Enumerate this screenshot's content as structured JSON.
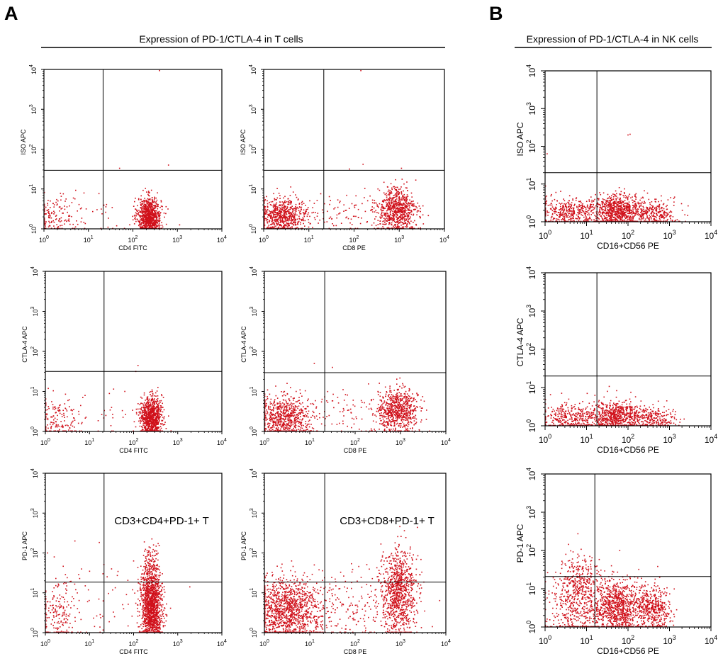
{
  "panels": {
    "A": {
      "letter": "A",
      "title": "Expression of PD-1/CTLA-4 in T cells"
    },
    "B": {
      "letter": "B",
      "title": "Expression of PD-1/CTLA-4 in NK cells"
    }
  },
  "chart_data": [
    {
      "type": "scatter",
      "panel": "A",
      "id": "t-cd4-iso",
      "xlabel": "CD4 FITC",
      "ylabel": "ISO APC",
      "xlim": [
        0,
        4
      ],
      "ylim": [
        0,
        4
      ],
      "xticks": [
        {
          "b": "10",
          "e": "0"
        },
        {
          "b": "10",
          "e": "1"
        },
        {
          "b": "10",
          "e": "2"
        },
        {
          "b": "10",
          "e": "3"
        },
        {
          "b": "10",
          "e": "4"
        }
      ],
      "yticks": [
        {
          "b": "10",
          "e": "0"
        },
        {
          "b": "10",
          "e": "1"
        },
        {
          "b": "10",
          "e": "2"
        },
        {
          "b": "10",
          "e": "3"
        },
        {
          "b": "10",
          "e": "4"
        }
      ],
      "gate": {
        "x": 1.33,
        "y": 1.47
      },
      "point_color": "#d0101a",
      "clusters": [
        {
          "x": 2.37,
          "y": 0.32,
          "sx": 0.13,
          "sy": 0.23,
          "n": 900
        },
        {
          "x": 0.2,
          "y": 0.3,
          "sx": 0.25,
          "sy": 0.25,
          "n": 140
        },
        {
          "x": 1.2,
          "y": 0.3,
          "sx": 0.6,
          "sy": 0.3,
          "n": 40
        }
      ],
      "outliers": [
        [
          2.6,
          3.97
        ],
        [
          2.8,
          1.6
        ],
        [
          1.7,
          1.52
        ],
        [
          0.95,
          0.5
        ],
        [
          0.9,
          0.9
        ],
        [
          3.05,
          0.1
        ]
      ]
    },
    {
      "type": "scatter",
      "panel": "A",
      "id": "t-cd8-iso",
      "xlabel": "CD8 PE",
      "ylabel": "ISO APC",
      "xlim": [
        0,
        4
      ],
      "ylim": [
        0,
        4
      ],
      "xticks": [
        {
          "b": "10",
          "e": "0"
        },
        {
          "b": "10",
          "e": "1"
        },
        {
          "b": "10",
          "e": "2"
        },
        {
          "b": "10",
          "e": "3"
        },
        {
          "b": "10",
          "e": "4"
        }
      ],
      "yticks": [
        {
          "b": "10",
          "e": "0"
        },
        {
          "b": "10",
          "e": "1"
        },
        {
          "b": "10",
          "e": "2"
        },
        {
          "b": "10",
          "e": "3"
        },
        {
          "b": "10",
          "e": "4"
        }
      ],
      "gate": {
        "x": 1.33,
        "y": 1.47
      },
      "point_color": "#d0101a",
      "clusters": [
        {
          "x": 0.4,
          "y": 0.32,
          "sx": 0.3,
          "sy": 0.22,
          "n": 700
        },
        {
          "x": 2.95,
          "y": 0.45,
          "sx": 0.22,
          "sy": 0.28,
          "n": 750
        },
        {
          "x": 1.8,
          "y": 0.4,
          "sx": 0.5,
          "sy": 0.3,
          "n": 90
        }
      ],
      "outliers": [
        [
          2.15,
          3.97
        ],
        [
          2.2,
          1.62
        ],
        [
          3.05,
          1.52
        ],
        [
          1.9,
          1.5
        ]
      ]
    },
    {
      "type": "scatter",
      "panel": "A",
      "id": "t-cd4-ctla4",
      "xlabel": "CD4 FITC",
      "ylabel": "CTLA-4 APC",
      "xlim": [
        0,
        4
      ],
      "ylim": [
        0,
        4
      ],
      "xticks": [
        {
          "b": "10",
          "e": "0"
        },
        {
          "b": "10",
          "e": "1"
        },
        {
          "b": "10",
          "e": "2"
        },
        {
          "b": "10",
          "e": "3"
        },
        {
          "b": "10",
          "e": "4"
        }
      ],
      "yticks": [
        {
          "b": "10",
          "e": "0"
        },
        {
          "b": "10",
          "e": "1"
        },
        {
          "b": "10",
          "e": "2"
        },
        {
          "b": "10",
          "e": "3"
        },
        {
          "b": "10",
          "e": "4"
        }
      ],
      "gate": {
        "x": 1.33,
        "y": 1.5
      },
      "point_color": "#d0101a",
      "clusters": [
        {
          "x": 2.4,
          "y": 0.35,
          "sx": 0.12,
          "sy": 0.25,
          "n": 900
        },
        {
          "x": 0.25,
          "y": 0.3,
          "sx": 0.25,
          "sy": 0.28,
          "n": 150
        },
        {
          "x": 1.2,
          "y": 0.35,
          "sx": 0.6,
          "sy": 0.3,
          "n": 40
        }
      ],
      "outliers": [
        [
          2.1,
          1.65
        ],
        [
          2.05,
          1.5
        ],
        [
          1.8,
          1.0
        ],
        [
          0.9,
          0.9
        ],
        [
          1.5,
          0.6
        ]
      ]
    },
    {
      "type": "scatter",
      "panel": "A",
      "id": "t-cd8-ctla4",
      "xlabel": "CD8 PE",
      "ylabel": "CTLA-4 APC",
      "xlim": [
        0,
        4
      ],
      "ylim": [
        0,
        4
      ],
      "xticks": [
        {
          "b": "10",
          "e": "0"
        },
        {
          "b": "10",
          "e": "1"
        },
        {
          "b": "10",
          "e": "2"
        },
        {
          "b": "10",
          "e": "3"
        },
        {
          "b": "10",
          "e": "4"
        }
      ],
      "yticks": [
        {
          "b": "10",
          "e": "0"
        },
        {
          "b": "10",
          "e": "1"
        },
        {
          "b": "10",
          "e": "2"
        },
        {
          "b": "10",
          "e": "3"
        },
        {
          "b": "10",
          "e": "4"
        }
      ],
      "gate": {
        "x": 1.33,
        "y": 1.47
      },
      "point_color": "#d0101a",
      "clusters": [
        {
          "x": 0.45,
          "y": 0.35,
          "sx": 0.3,
          "sy": 0.25,
          "n": 700
        },
        {
          "x": 2.95,
          "y": 0.5,
          "sx": 0.22,
          "sy": 0.28,
          "n": 700
        },
        {
          "x": 1.8,
          "y": 0.45,
          "sx": 0.5,
          "sy": 0.3,
          "n": 90
        }
      ],
      "outliers": [
        [
          1.1,
          1.7
        ],
        [
          1.5,
          1.6
        ],
        [
          0.5,
          1.2
        ],
        [
          0.7,
          1.0
        ]
      ]
    },
    {
      "type": "scatter",
      "panel": "A",
      "id": "t-cd4-pd1",
      "xlabel": "CD4 FITC",
      "ylabel": "PD-1 APC",
      "xlim": [
        0,
        4
      ],
      "ylim": [
        0,
        4
      ],
      "xticks": [
        {
          "b": "10",
          "e": "0"
        },
        {
          "b": "10",
          "e": "1"
        },
        {
          "b": "10",
          "e": "2"
        },
        {
          "b": "10",
          "e": "3"
        },
        {
          "b": "10",
          "e": "4"
        }
      ],
      "yticks": [
        {
          "b": "10",
          "e": "0"
        },
        {
          "b": "10",
          "e": "1"
        },
        {
          "b": "10",
          "e": "2"
        },
        {
          "b": "10",
          "e": "3"
        },
        {
          "b": "10",
          "e": "4"
        }
      ],
      "gate": {
        "x": 1.33,
        "y": 1.27
      },
      "point_color": "#d0101a",
      "annotation": "CD3+CD4+PD-1+ T",
      "clusters": [
        {
          "x": 2.4,
          "y": 0.6,
          "sx": 0.12,
          "sy": 0.45,
          "n": 1300
        },
        {
          "x": 2.4,
          "y": 1.5,
          "sx": 0.1,
          "sy": 0.35,
          "n": 180
        },
        {
          "x": 0.25,
          "y": 0.5,
          "sx": 0.25,
          "sy": 0.45,
          "n": 200
        },
        {
          "x": 1.4,
          "y": 0.8,
          "sx": 0.6,
          "sy": 0.5,
          "n": 60
        }
      ],
      "outliers": [
        [
          1.5,
          1.6
        ],
        [
          0.2,
          1.9
        ],
        [
          0.05,
          2.0
        ],
        [
          2.0,
          1.8
        ]
      ]
    },
    {
      "type": "scatter",
      "panel": "A",
      "id": "t-cd8-pd1",
      "xlabel": "CD8 PE",
      "ylabel": "PD-1 APC",
      "xlim": [
        0,
        4
      ],
      "ylim": [
        0,
        4
      ],
      "xticks": [
        {
          "b": "10",
          "e": "0"
        },
        {
          "b": "10",
          "e": "1"
        },
        {
          "b": "10",
          "e": "2"
        },
        {
          "b": "10",
          "e": "3"
        },
        {
          "b": "10",
          "e": "4"
        }
      ],
      "yticks": [
        {
          "b": "10",
          "e": "0"
        },
        {
          "b": "10",
          "e": "1"
        },
        {
          "b": "10",
          "e": "2"
        },
        {
          "b": "10",
          "e": "3"
        },
        {
          "b": "10",
          "e": "4"
        }
      ],
      "gate": {
        "x": 1.33,
        "y": 1.27
      },
      "point_color": "#d0101a",
      "annotation": "CD3+CD8+PD-1+ T",
      "clusters": [
        {
          "x": 0.5,
          "y": 0.55,
          "sx": 0.35,
          "sy": 0.4,
          "n": 1200
        },
        {
          "x": 2.95,
          "y": 1.0,
          "sx": 0.2,
          "sy": 0.55,
          "n": 900
        },
        {
          "x": 1.8,
          "y": 0.7,
          "sx": 0.55,
          "sy": 0.5,
          "n": 200
        }
      ],
      "outliers": [
        [
          0.6,
          1.8
        ],
        [
          1.1,
          1.7
        ],
        [
          2.9,
          2.1
        ],
        [
          3.1,
          2.0
        ]
      ]
    },
    {
      "type": "scatter",
      "panel": "B",
      "id": "nk-iso",
      "xlabel": "CD16+CD56 PE",
      "ylabel": "ISO APC",
      "xlim": [
        0,
        4
      ],
      "ylim": [
        0,
        4
      ],
      "xticks": [
        {
          "b": "10",
          "e": "0"
        },
        {
          "b": "10",
          "e": "1"
        },
        {
          "b": "10",
          "e": "2"
        },
        {
          "b": "10",
          "e": "3"
        },
        {
          "b": "10",
          "e": "4"
        }
      ],
      "yticks": [
        {
          "b": "10",
          "e": "0"
        },
        {
          "b": "10",
          "e": "1"
        },
        {
          "b": "10",
          "e": "2"
        },
        {
          "b": "10",
          "e": "3"
        },
        {
          "b": "10",
          "e": "4"
        }
      ],
      "gate": {
        "x": 1.25,
        "y": 1.3
      },
      "point_color": "#d0101a",
      "clusters": [
        {
          "x": 1.75,
          "y": 0.28,
          "sx": 0.28,
          "sy": 0.22,
          "n": 700
        },
        {
          "x": 0.7,
          "y": 0.25,
          "sx": 0.45,
          "sy": 0.2,
          "n": 450
        },
        {
          "x": 2.6,
          "y": 0.2,
          "sx": 0.3,
          "sy": 0.18,
          "n": 300
        }
      ],
      "outliers": [
        [
          2.0,
          2.3
        ],
        [
          2.05,
          2.32
        ],
        [
          0.05,
          1.8
        ]
      ]
    },
    {
      "type": "scatter",
      "panel": "B",
      "id": "nk-ctla4",
      "xlabel": "CD16+CD56 PE",
      "ylabel": "CTLA-4 APC",
      "xlim": [
        0,
        4
      ],
      "ylim": [
        0,
        4
      ],
      "xticks": [
        {
          "b": "10",
          "e": "0"
        },
        {
          "b": "10",
          "e": "1"
        },
        {
          "b": "10",
          "e": "2"
        },
        {
          "b": "10",
          "e": "3"
        },
        {
          "b": "10",
          "e": "4"
        }
      ],
      "yticks": [
        {
          "b": "10",
          "e": "0"
        },
        {
          "b": "10",
          "e": "1"
        },
        {
          "b": "10",
          "e": "2"
        },
        {
          "b": "10",
          "e": "3"
        },
        {
          "b": "10",
          "e": "4"
        }
      ],
      "gate": {
        "x": 1.25,
        "y": 1.3
      },
      "point_color": "#d0101a",
      "clusters": [
        {
          "x": 1.75,
          "y": 0.25,
          "sx": 0.3,
          "sy": 0.2,
          "n": 600
        },
        {
          "x": 0.7,
          "y": 0.2,
          "sx": 0.45,
          "sy": 0.18,
          "n": 400
        },
        {
          "x": 2.6,
          "y": 0.18,
          "sx": 0.3,
          "sy": 0.15,
          "n": 250
        }
      ],
      "outliers": [
        [
          1.5,
          0.9
        ],
        [
          0.4,
          0.85
        ]
      ]
    },
    {
      "type": "scatter",
      "panel": "B",
      "id": "nk-pd1",
      "xlabel": "CD16+CD56 PE",
      "ylabel": "PD-1 APC",
      "xlim": [
        0,
        4
      ],
      "ylim": [
        0,
        4
      ],
      "xticks": [
        {
          "b": "10",
          "e": "0"
        },
        {
          "b": "10",
          "e": "1"
        },
        {
          "b": "10",
          "e": "2"
        },
        {
          "b": "10",
          "e": "3"
        },
        {
          "b": "10",
          "e": "4"
        }
      ],
      "yticks": [
        {
          "b": "10",
          "e": "0"
        },
        {
          "b": "10",
          "e": "1"
        },
        {
          "b": "10",
          "e": "2"
        },
        {
          "b": "10",
          "e": "3"
        },
        {
          "b": "10",
          "e": "4"
        }
      ],
      "gate": {
        "x": 1.2,
        "y": 1.32
      },
      "point_color": "#d0101a",
      "clusters": [
        {
          "x": 1.75,
          "y": 0.5,
          "sx": 0.28,
          "sy": 0.35,
          "n": 900
        },
        {
          "x": 2.6,
          "y": 0.45,
          "sx": 0.22,
          "sy": 0.3,
          "n": 450
        },
        {
          "x": 0.75,
          "y": 0.6,
          "sx": 0.35,
          "sy": 0.5,
          "n": 550
        },
        {
          "x": 0.85,
          "y": 1.35,
          "sx": 0.2,
          "sy": 0.3,
          "n": 150
        }
      ],
      "outliers": [
        [
          1.8,
          2.0
        ],
        [
          1.6,
          1.6
        ],
        [
          0.5,
          1.9
        ]
      ]
    }
  ]
}
